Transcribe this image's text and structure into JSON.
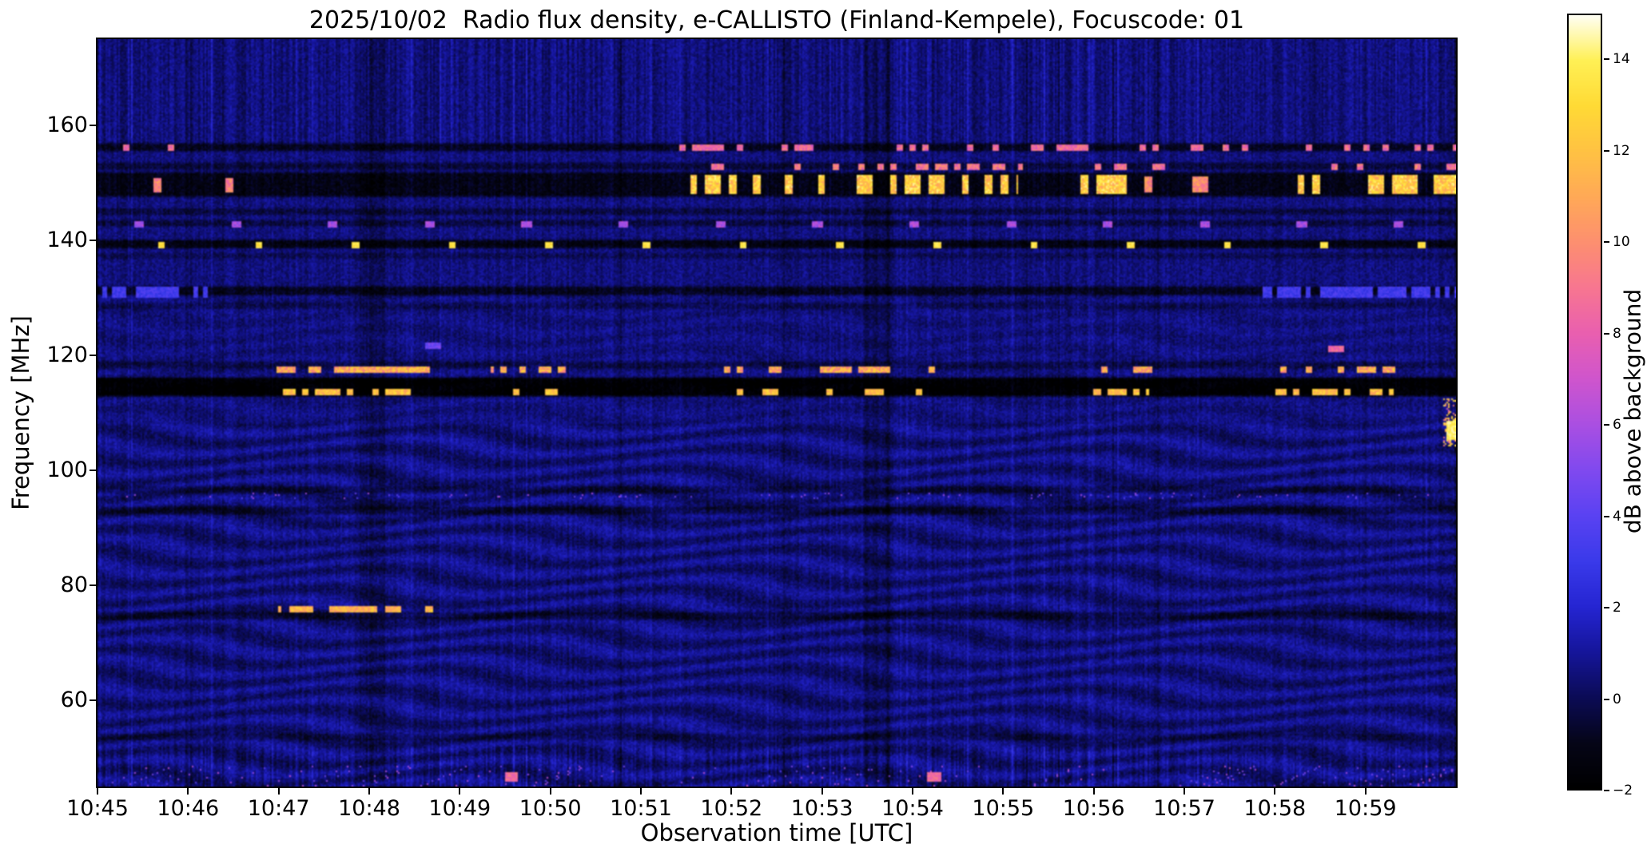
{
  "meta": {
    "date": "2025/10/02",
    "instrument": "e-CALLISTO",
    "station": "Finland-Kempele",
    "focuscode": "01"
  },
  "chart_data": {
    "type": "heatmap",
    "title": "2025/10/02  Radio flux density, e-CALLISTO (Finland-Kempele), Focuscode: 01",
    "xlabel": "Observation time [UTC]",
    "ylabel": "Frequency [MHz]",
    "colorbar_label": "dB above background",
    "x_ticks": [
      "10:45",
      "10:46",
      "10:47",
      "10:48",
      "10:49",
      "10:50",
      "10:51",
      "10:52",
      "10:53",
      "10:54",
      "10:55",
      "10:56",
      "10:57",
      "10:58",
      "10:59"
    ],
    "time_start": "10:45",
    "time_end": "11:00",
    "duration_min": 15,
    "y_ticks": [
      60,
      80,
      100,
      120,
      140,
      160
    ],
    "freq_range_mhz": [
      45,
      175
    ],
    "colorbar_ticks": [
      -2,
      0,
      2,
      4,
      6,
      8,
      10,
      12,
      14
    ],
    "colorbar_tick_labels": [
      "−2",
      "0",
      "2",
      "4",
      "6",
      "8",
      "10",
      "12",
      "14"
    ],
    "value_range_db": [
      -2,
      15
    ],
    "grid": false,
    "legend": "colorbar-right",
    "colormap_stops": [
      [
        -2,
        "#000000"
      ],
      [
        -1,
        "#050517"
      ],
      [
        0,
        "#0b0b55"
      ],
      [
        1,
        "#15159a"
      ],
      [
        2,
        "#2525d2"
      ],
      [
        3,
        "#3a3aea"
      ],
      [
        4,
        "#5a42f2"
      ],
      [
        5,
        "#8049ef"
      ],
      [
        6,
        "#aa4fe2"
      ],
      [
        7,
        "#cf55cd"
      ],
      [
        8,
        "#e95fb0"
      ],
      [
        9,
        "#f77691"
      ],
      [
        10,
        "#fd8f70"
      ],
      [
        11,
        "#ffa957"
      ],
      [
        12,
        "#ffc243"
      ],
      [
        13,
        "#ffda35"
      ],
      [
        14,
        "#fff055"
      ],
      [
        15,
        "#fffff5"
      ]
    ],
    "background_db": 0.55,
    "noise_amplitude_db": 1.15,
    "wave_texture": {
      "below_mhz": 108,
      "amplitude_db": 0.55,
      "note": "wavy interference ripple pattern in lower band"
    },
    "dark_bands": [
      {
        "f_mhz": 156.2,
        "half_mhz": 0.35,
        "depth_db": 1.5
      },
      {
        "f_mhz": 152.9,
        "half_mhz": 0.3,
        "depth_db": 1.0
      },
      {
        "f_mhz": 149.7,
        "half_mhz": 1.8,
        "depth_db": 1.7
      },
      {
        "f_mhz": 145.0,
        "half_mhz": 0.25,
        "depth_db": 0.9
      },
      {
        "f_mhz": 143.0,
        "half_mhz": 0.25,
        "depth_db": 0.9
      },
      {
        "f_mhz": 139.35,
        "half_mhz": 0.4,
        "depth_db": 1.8
      },
      {
        "f_mhz": 137.3,
        "half_mhz": 0.2,
        "depth_db": 0.6
      },
      {
        "f_mhz": 131.2,
        "half_mhz": 0.45,
        "depth_db": 1.5
      },
      {
        "f_mhz": 128.6,
        "half_mhz": 0.25,
        "depth_db": 0.6
      },
      {
        "f_mhz": 118.3,
        "half_mhz": 0.3,
        "depth_db": 0.8
      },
      {
        "f_mhz": 114.5,
        "half_mhz": 1.3,
        "depth_db": 2.5
      },
      {
        "f_mhz": 96.6,
        "half_mhz": 0.3,
        "depth_db": 0.8
      },
      {
        "f_mhz": 93.0,
        "half_mhz": 0.4,
        "depth_db": 1.0
      },
      {
        "f_mhz": 74.7,
        "half_mhz": 0.4,
        "depth_db": 1.1
      },
      {
        "f_mhz": 53.6,
        "half_mhz": 0.3,
        "depth_db": 0.7
      }
    ],
    "dark_columns": [
      {
        "t_min": [
          2.9,
          3.15
        ],
        "depth_db": 0.5
      },
      {
        "t_min": [
          8.45,
          8.75
        ],
        "depth_db": 0.5
      }
    ],
    "features": [
      {
        "name": "156 MHz intermittent interference",
        "f_mhz": [
          155.7,
          156.6
        ],
        "pattern": "bursts",
        "intervals_min": [
          [
            0.25,
            1.0
          ],
          [
            6.4,
            15
          ]
        ],
        "db": 8.5,
        "duty": 0.32,
        "dash_min": 0.07,
        "db_jitter": 3
      },
      {
        "name": "153 MHz intermittent interference",
        "f_mhz": [
          152.5,
          153.2
        ],
        "pattern": "bursts",
        "intervals_min": [
          [
            6.4,
            10.2
          ],
          [
            10.9,
            12.2
          ],
          [
            13.3,
            15
          ]
        ],
        "db": 9,
        "duty": 0.22,
        "dash_min": 0.07,
        "db_jitter": 3
      },
      {
        "name": "149-151 MHz strong burst clusters",
        "f_mhz": [
          148.3,
          151.3
        ],
        "pattern": "bursts",
        "intervals_min": [
          [
            6.55,
            7.65
          ],
          [
            7.95,
            8.6
          ],
          [
            8.75,
            9.35
          ],
          [
            9.55,
            10.15
          ],
          [
            10.85,
            11.35
          ],
          [
            13.25,
            14.55
          ],
          [
            14.75,
            15
          ]
        ],
        "db": 12.5,
        "duty": 0.6,
        "dash_min": 0.08,
        "db_jitter": 4
      },
      {
        "name": "149-151 MHz weaker bursts",
        "f_mhz": [
          148.5,
          151.0
        ],
        "pattern": "bursts",
        "intervals_min": [
          [
            11.5,
            12.3
          ]
        ],
        "db": 10,
        "duty": 0.35,
        "dash_min": 0.08,
        "db_jitter": 3
      },
      {
        "name": "149-151 MHz sparse specks left half",
        "f_mhz": [
          148.6,
          150.8
        ],
        "pattern": "bursts",
        "intervals_min": [
          [
            0,
            6.4
          ]
        ],
        "db": 9.5,
        "duty": 0.045,
        "dash_min": 0.08,
        "db_jitter": 3
      },
      {
        "name": "139.3 MHz periodic bright calibration dots",
        "f_mhz": [
          139.0,
          139.8
        ],
        "pattern": "dots",
        "intervals_min": [
          [
            0,
            15
          ]
        ],
        "period_min": 1.07,
        "phase_min": 0.7,
        "dot_min": 0.08,
        "db": 13.5,
        "db_jitter": 1.5
      },
      {
        "name": "143 MHz periodic weak marks",
        "f_mhz": [
          142.6,
          143.2
        ],
        "pattern": "dots",
        "intervals_min": [
          [
            0,
            15
          ]
        ],
        "period_min": 1.07,
        "phase_min": 0.45,
        "dot_min": 0.11,
        "db": 6,
        "db_jitter": 2
      },
      {
        "name": "117.6 MHz burst clusters",
        "f_mhz": [
          117.1,
          118.1
        ],
        "pattern": "bursts",
        "intervals_min": [
          [
            1.95,
            3.65
          ],
          [
            4.35,
            5.15
          ],
          [
            6.85,
            7.55
          ],
          [
            7.95,
            9.25
          ],
          [
            10.95,
            11.65
          ],
          [
            12.95,
            14.35
          ]
        ],
        "db": 11,
        "duty": 0.5,
        "dash_min": 0.07,
        "db_jitter": 4
      },
      {
        "name": "113.9 MHz burst clusters at black band edge",
        "f_mhz": [
          113.4,
          114.3
        ],
        "pattern": "bursts",
        "intervals_min": [
          [
            2.0,
            3.6
          ],
          [
            4.4,
            5.1
          ],
          [
            6.9,
            7.5
          ],
          [
            8.0,
            9.2
          ],
          [
            11.0,
            11.6
          ],
          [
            13.0,
            14.3
          ]
        ],
        "db": 12,
        "duty": 0.55,
        "dash_min": 0.07,
        "db_jitter": 3
      },
      {
        "name": "76 MHz drifting bursts 10:47-10:48.6",
        "f_mhz": [
          75.6,
          76.5
        ],
        "pattern": "bursts",
        "intervals_min": [
          [
            2.0,
            3.7
          ]
        ],
        "db": 11.5,
        "duty": 0.6,
        "dash_min": 0.09,
        "db_jitter": 3
      },
      {
        "name": "122 MHz faint spot near 10:48.7",
        "f_mhz": [
          121.3,
          122.3
        ],
        "pattern": "bursts",
        "intervals_min": [
          [
            3.62,
            3.78
          ]
        ],
        "db": 4.5,
        "duty": 1,
        "dash_min": 0.2,
        "db_jitter": 1.5
      },
      {
        "name": "121 MHz spot near 10:58.7",
        "f_mhz": [
          120.8,
          121.7
        ],
        "pattern": "bursts",
        "intervals_min": [
          [
            13.58,
            13.75
          ]
        ],
        "db": 8.5,
        "duty": 1,
        "dash_min": 0.2,
        "db_jitter": 2
      },
      {
        "name": "131 MHz enhanced blue noise",
        "f_mhz": [
          130.4,
          131.9
        ],
        "pattern": "bursts",
        "intervals_min": [
          [
            0,
            1.2
          ],
          [
            12.8,
            15
          ]
        ],
        "db": 3.2,
        "duty": 0.6,
        "dash_min": 0.05,
        "db_jitter": 1.5
      },
      {
        "name": "96 MHz sparse specks",
        "f_mhz": [
          95.3,
          96.2
        ],
        "pattern": "speckle",
        "intervals_min": [
          [
            0,
            15
          ]
        ],
        "density": 0.035,
        "db": 5,
        "db_jitter": 3
      },
      {
        "name": "low band 45-48 MHz specks",
        "f_mhz": [
          45.3,
          48.5
        ],
        "pattern": "speckle",
        "intervals_min": [
          [
            0,
            15
          ]
        ],
        "density": 0.02,
        "db": 5.5,
        "db_jitter": 3
      },
      {
        "name": "low band bright specks",
        "f_mhz": [
          46.2,
          47.6
        ],
        "pattern": "bursts",
        "intervals_min": [
          [
            4.5,
            4.62
          ],
          [
            9.15,
            9.3
          ]
        ],
        "db": 8.5,
        "duty": 1,
        "dash_min": 0.15,
        "db_jitter": 2
      },
      {
        "name": "right edge wideband burst 104-112 MHz",
        "f_mhz": [
          104.5,
          112.5
        ],
        "pattern": "speckle",
        "intervals_min": [
          [
            14.85,
            15
          ]
        ],
        "density": 0.3,
        "db": 11,
        "db_jitter": 6
      },
      {
        "name": "right edge white blob 106-108 MHz",
        "f_mhz": [
          105.5,
          108.5
        ],
        "pattern": "bursts",
        "intervals_min": [
          [
            14.9,
            15
          ]
        ],
        "db": 14,
        "duty": 0.7,
        "dash_min": 0.05,
        "db_jitter": 1.5
      }
    ]
  }
}
